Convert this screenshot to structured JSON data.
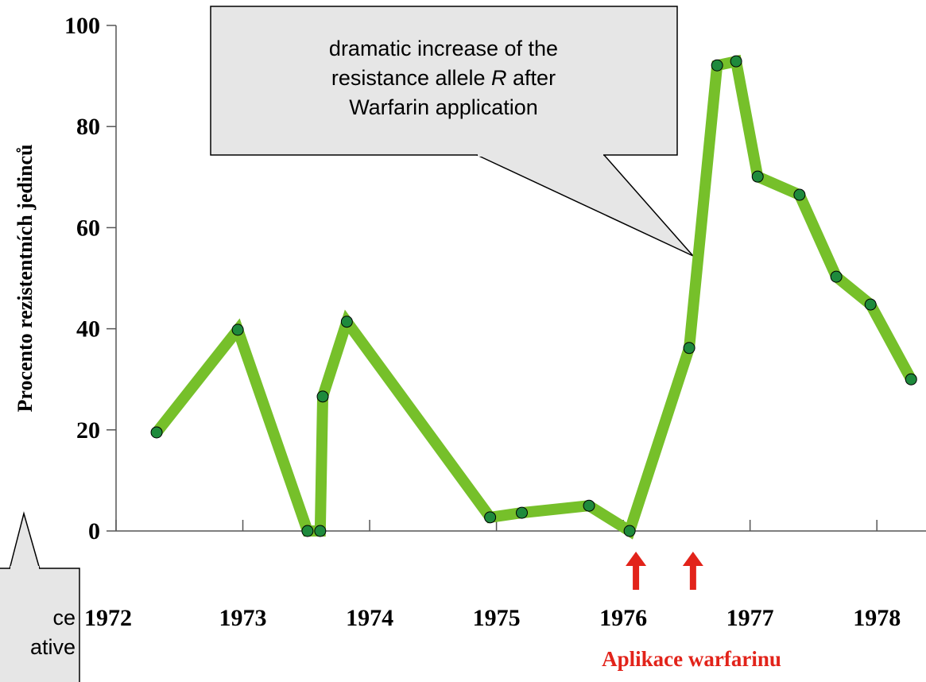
{
  "chart_data": {
    "type": "line",
    "y_label": "Procento rezistentních jedinců",
    "x_note": "Aplikace warfarinu",
    "x": [
      1972.32,
      1972.96,
      1973.51,
      1973.61,
      1973.63,
      1973.82,
      1974.95,
      1975.2,
      1975.73,
      1976.05,
      1976.52,
      1976.74,
      1976.89,
      1977.06,
      1977.39,
      1977.68,
      1977.95,
      1978.27
    ],
    "series": [
      {
        "color": "#76c02a",
        "values": [
          19.5,
          39.8,
          0,
          0,
          26.6,
          41.4,
          2.7,
          3.6,
          5.0,
          0,
          36.2,
          92.1,
          92.9,
          70.1,
          66.5,
          50.3,
          44.8,
          30.0
        ]
      }
    ],
    "marker_color": "#1e8a3c",
    "xlim": [
      1972,
      1978.4
    ],
    "ylim": [
      0,
      100
    ],
    "xticks": [
      1972,
      1973,
      1974,
      1975,
      1976,
      1977,
      1978
    ],
    "yticks": [
      0,
      20,
      40,
      60,
      80,
      100
    ],
    "arrows": [
      1976.1,
      1976.55
    ],
    "arrow_color": "#e2231a",
    "annotations": [
      {
        "lines": [
          [
            "dramatic increase of the"
          ],
          [
            "resistance allele ",
            "R",
            " after"
          ],
          [
            "Warfarin application"
          ]
        ]
      },
      {
        "lines": [
          [
            "ce"
          ],
          [
            "ative"
          ]
        ]
      }
    ]
  }
}
